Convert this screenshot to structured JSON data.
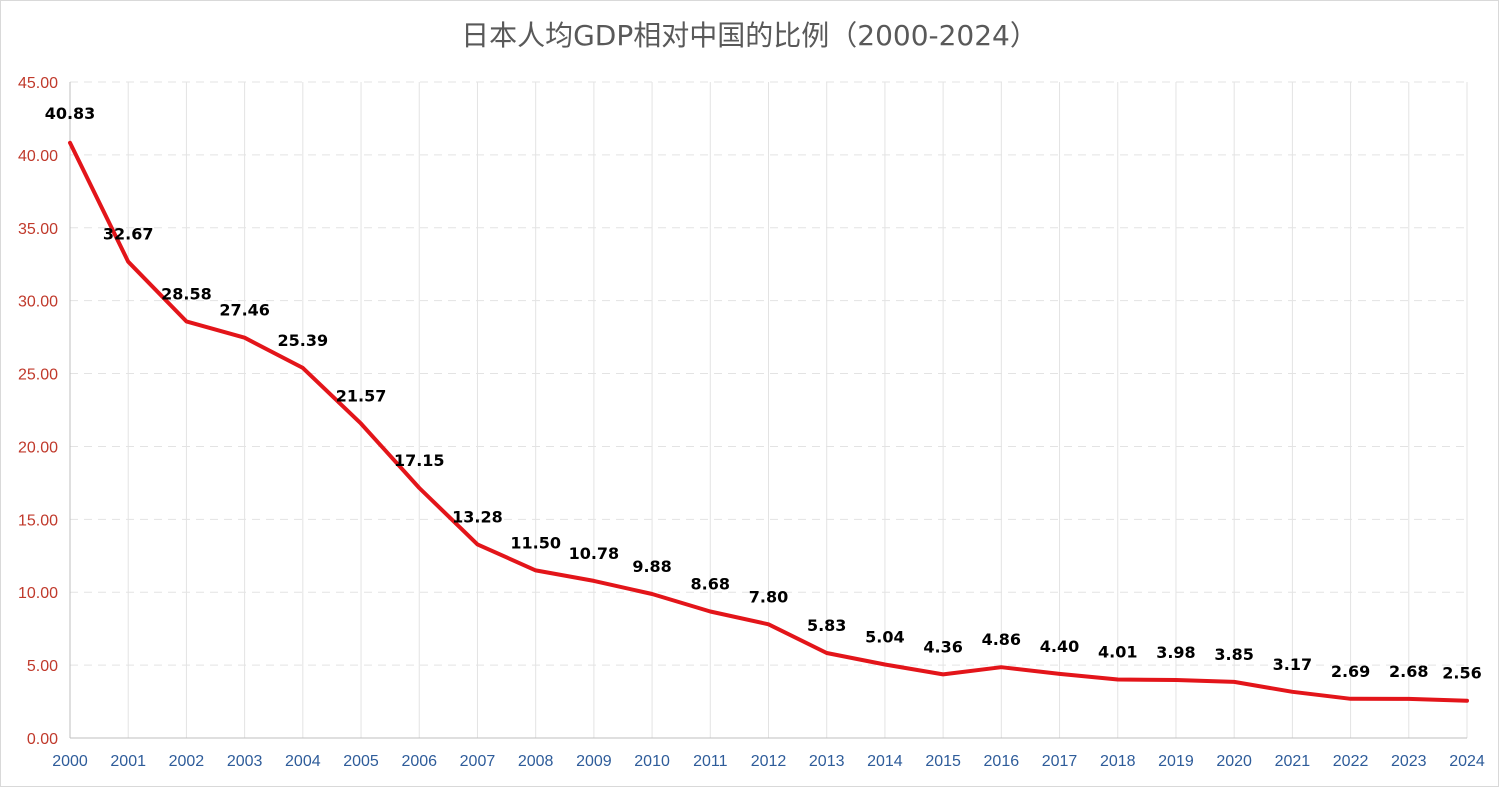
{
  "chart_data": {
    "type": "line",
    "title": "日本人均GDP相对中国的比例（2000-2024）",
    "x": [
      "2000",
      "2001",
      "2002",
      "2003",
      "2004",
      "2005",
      "2006",
      "2007",
      "2008",
      "2009",
      "2010",
      "2011",
      "2012",
      "2013",
      "2014",
      "2015",
      "2016",
      "2017",
      "2018",
      "2019",
      "2020",
      "2021",
      "2022",
      "2023",
      "2024"
    ],
    "series": [
      {
        "values": [
          40.83,
          32.67,
          28.58,
          27.46,
          25.39,
          21.57,
          17.15,
          13.28,
          11.5,
          10.78,
          9.88,
          8.68,
          7.8,
          5.83,
          5.04,
          4.36,
          4.86,
          4.4,
          4.01,
          3.98,
          3.85,
          3.17,
          2.69,
          2.68,
          2.56
        ],
        "labels": [
          "40.83",
          "32.67",
          "28.58",
          "27.46",
          "25.39",
          "21.57",
          "17.15",
          "13.28",
          "11.50",
          "10.78",
          "9.88",
          "8.68",
          "7.80",
          "5.83",
          "5.04",
          "4.36",
          "4.86",
          "4.40",
          "4.01",
          "3.98",
          "3.85",
          "3.17",
          "2.69",
          "2.68",
          "2.56"
        ],
        "color": "#e3151a"
      }
    ],
    "yticks": [
      "0.00",
      "5.00",
      "10.00",
      "15.00",
      "20.00",
      "25.00",
      "30.00",
      "35.00",
      "40.00",
      "45.00"
    ],
    "ylim": [
      0,
      45
    ],
    "xlabel": "",
    "ylabel": "",
    "grid": "horizontal dashed + vertical solid",
    "colors": {
      "line": "#e3151a",
      "ytick": "#c0392b",
      "xtick": "#2e5c9a",
      "grid": "#e3e3e3"
    }
  }
}
